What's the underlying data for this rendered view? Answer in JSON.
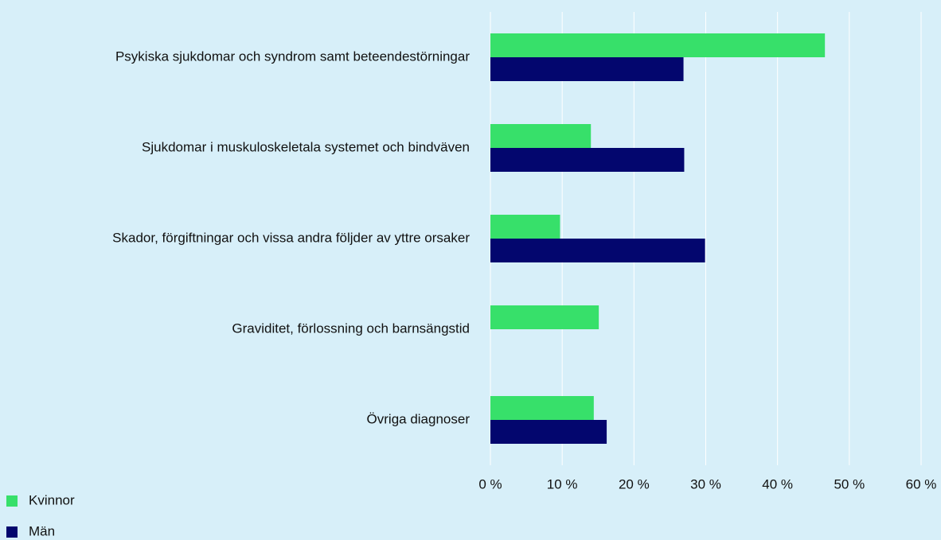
{
  "chart_data": {
    "type": "bar",
    "orientation": "horizontal",
    "categories": [
      "Psykiska sjukdomar och syndrom samt beteendestörningar",
      "Sjukdomar i muskuloskeletala systemet och bindväven",
      "Skador, förgiftningar och vissa andra följder av yttre orsaker",
      "Graviditet, förlossning och barnsängstid",
      "Övriga diagnoser"
    ],
    "series": [
      {
        "name": "Kvinnor",
        "color": "#37e06a",
        "values": [
          46.6,
          14.0,
          9.7,
          15.1,
          14.4
        ]
      },
      {
        "name": "Män",
        "color": "#03066e",
        "values": [
          26.9,
          27.0,
          29.9,
          null,
          16.2
        ]
      }
    ],
    "xlim": [
      0,
      60
    ],
    "xticks": [
      {
        "value": 0,
        "label": "0 %"
      },
      {
        "value": 10,
        "label": "10 %"
      },
      {
        "value": 20,
        "label": "20 %"
      },
      {
        "value": 30,
        "label": "30 %"
      },
      {
        "value": 40,
        "label": "40 %"
      },
      {
        "value": 50,
        "label": "50 %"
      },
      {
        "value": 60,
        "label": "60 %"
      }
    ],
    "grid": true,
    "legend": "bottom-left"
  }
}
